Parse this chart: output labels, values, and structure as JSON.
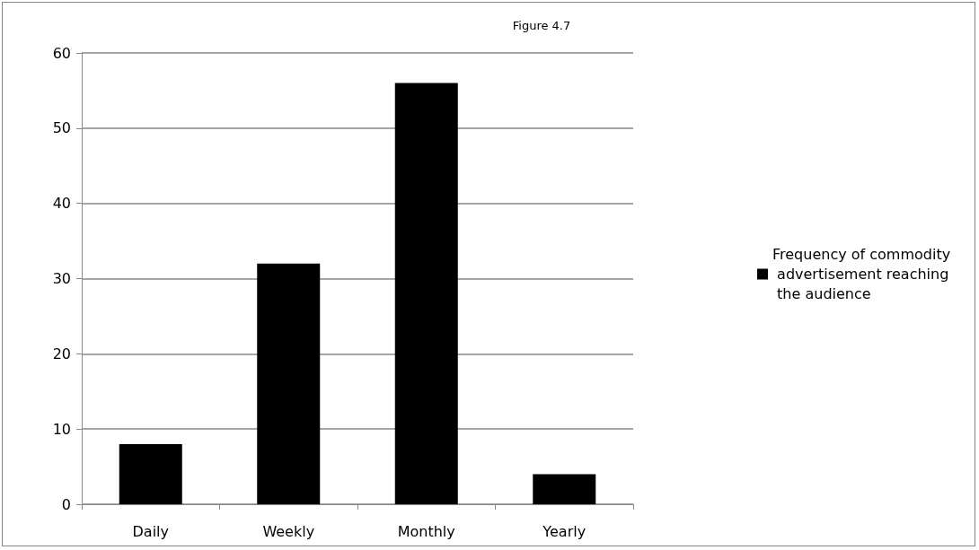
{
  "chart_data": {
    "type": "bar",
    "title": "Figure 4.7",
    "categories": [
      "Daily",
      "Weekly",
      "Monthly",
      "Yearly"
    ],
    "series": [
      {
        "name": "Frequency of commodity advertisement reaching the audience",
        "color": "#000000",
        "values": [
          8,
          32,
          56,
          4
        ]
      }
    ],
    "ylim": [
      0,
      60
    ],
    "yticks": [
      0,
      10,
      20,
      30,
      40,
      50,
      60
    ],
    "grid": "y",
    "legend": "right"
  }
}
